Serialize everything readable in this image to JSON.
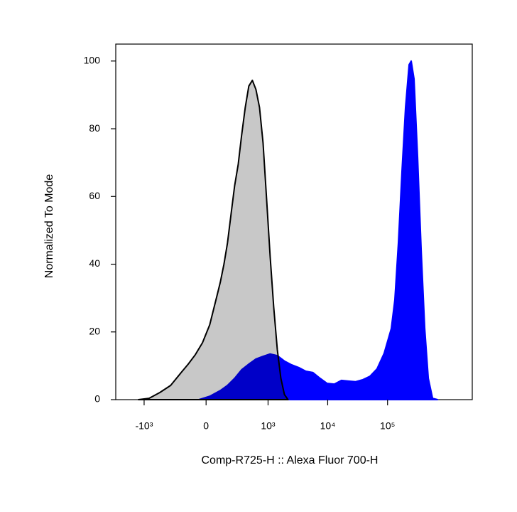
{
  "chart_data": {
    "type": "area",
    "x_label": "Comp-R725-H :: Alexa Fluor 700-H",
    "y_label": "Normalized To Mode",
    "xscale": "biexponential",
    "xlim": [
      -3000,
      2600000
    ],
    "xticks": [
      {
        "value": -1000,
        "label": "-10³"
      },
      0,
      {
        "value": 1000,
        "label": "10³"
      },
      {
        "value": 10000,
        "label": "10⁴"
      },
      {
        "value": 100000,
        "label": "10⁵"
      }
    ],
    "ylim": [
      0,
      105
    ],
    "yticks": [
      0,
      20,
      40,
      60,
      80,
      100
    ],
    "series": [
      {
        "color": "#0000ff",
        "stroke": "#0000ff",
        "x": [
          -138,
          -52,
          26,
          107,
          171,
          248,
          340,
          463,
          619,
          822,
          1087,
          1435,
          1889,
          2489,
          3273,
          4310,
          5667,
          7459,
          9802,
          12890,
          16945,
          22283,
          29314,
          38558,
          50704,
          66700,
          87718,
          115376,
          132302,
          151720,
          174003,
          199559,
          228854,
          248422,
          277180,
          317874,
          364560,
          418128,
          479508,
          565068,
          684971
        ],
        "values": [
          0,
          0,
          1,
          2.7,
          4.2,
          6.3,
          8.8,
          10.5,
          12,
          12.8,
          13.5,
          13,
          11.4,
          10.3,
          9.5,
          8.4,
          8,
          6.3,
          4.8,
          4.6,
          5.7,
          5.5,
          5.3,
          5.9,
          6.9,
          9.1,
          13.7,
          21,
          29.5,
          46.3,
          67.4,
          86.3,
          98.9,
          100,
          94.7,
          71.6,
          44.2,
          21,
          6.3,
          0.4,
          0
        ]
      },
      {
        "color": "#c8c8c8",
        "stroke": "#000000",
        "x": [
          -1246,
          -822,
          -536,
          -340,
          -207,
          -138,
          -79,
          -26,
          26,
          52,
          79,
          107,
          138,
          171,
          207,
          248,
          293,
          340,
          399,
          463,
          536,
          619,
          714,
          822,
          947,
          1087,
          1246,
          1435,
          1646,
          1889,
          2168
        ],
        "values": [
          0,
          0.4,
          2.1,
          4.2,
          8,
          10.5,
          13.3,
          16.8,
          22.1,
          26.3,
          30.5,
          34.7,
          40,
          46.3,
          54.7,
          63.2,
          69.5,
          77.9,
          86.3,
          92.6,
          94.3,
          91.6,
          86.3,
          75.8,
          58.9,
          42.1,
          27.4,
          14.7,
          6.3,
          1.5,
          0
        ]
      }
    ]
  }
}
